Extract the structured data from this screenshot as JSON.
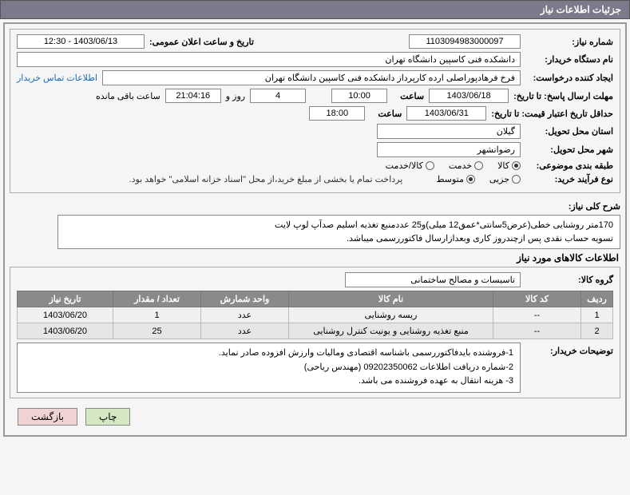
{
  "header": {
    "title": "جزئیات اطلاعات نیاز"
  },
  "fields": {
    "need_no_label": "شماره نیاز:",
    "need_no": "1103094983000097",
    "announce_label": "تاریخ و ساعت اعلان عمومی:",
    "announce_val": "1403/06/13 - 12:30",
    "buyer_label": "نام دستگاه خریدار:",
    "buyer_val": "دانشکده فنی کاسپین دانشگاه تهران",
    "requester_label": "ایجاد کننده درخواست:",
    "requester_val": "فرخ فرهادپوراصلی ارده کارپرداز دانشکده فنی کاسپین دانشگاه تهران",
    "contact_link": "اطلاعات تماس خریدار",
    "deadline_label": "مهلت ارسال پاسخ: تا تاریخ:",
    "deadline_date": "1403/06/18",
    "time_label": "ساعت",
    "deadline_time": "10:00",
    "days_val": "4",
    "days_label": "روز و",
    "countdown": "21:04:16",
    "remaining_label": "ساعت باقی مانده",
    "validity_label": "حداقل تاریخ اعتبار قیمت: تا تاریخ:",
    "validity_date": "1403/06/31",
    "validity_time": "18:00",
    "province_label": "استان محل تحویل:",
    "province_val": "گیلان",
    "city_label": "شهر محل تحویل:",
    "city_val": "رضوانشهر",
    "category_label": "طبقه بندی موضوعی:",
    "process_label": "نوع فرآیند خرید:",
    "payment_note": "پرداخت تمام یا بخشی از مبلغ خرید،از محل \"اسناد خزانه اسلامی\" خواهد بود.",
    "desc_label": "شرح کلی نیاز:",
    "desc_line1": "170متر روشنایی خطی(عرض5سانتی*عمق12 میلی)و25 عددمنبع تغذیه اسلیم صدآپ لوپ لایت",
    "desc_line2": "تسویه حساب نقدی پس ازچندروز کاری وبعدازارسال فاکتوررسمی میباشد.",
    "items_title": "اطلاعات کالاهای مورد نیاز",
    "group_label": "گروه کالا:",
    "group_val": "تاسیسات و مصالح ساختمانی",
    "notes_label": "توضیحات خریدار:",
    "notes_line1": "1-فروشنده بایدفاکتوررسمی باشناسه اقتصادی ومالیات وارزش افزوده صادر نماید.",
    "notes_line2": "2-شماره دریافت اطلاعات 09202350062 (مهندس ریاحی)",
    "notes_line3": "3- هزینه انتقال به عهده فروشنده می باشد."
  },
  "radios": {
    "category": [
      {
        "label": "کالا",
        "checked": true
      },
      {
        "label": "خدمت",
        "checked": false
      },
      {
        "label": "کالا/خدمت",
        "checked": false
      }
    ],
    "process": [
      {
        "label": "جزیی",
        "checked": false
      },
      {
        "label": "متوسط",
        "checked": true
      }
    ]
  },
  "table": {
    "headers": [
      "ردیف",
      "کد کالا",
      "نام کالا",
      "واحد شمارش",
      "تعداد / مقدار",
      "تاریخ نیاز"
    ],
    "rows": [
      [
        "1",
        "--",
        "ریسه روشنایی",
        "عدد",
        "1",
        "1403/06/20"
      ],
      [
        "2",
        "--",
        "منبع تغذیه روشنایی و یونیت کنترل روشنایی",
        "عدد",
        "25",
        "1403/06/20"
      ]
    ],
    "col_widths": [
      "40px",
      "110px",
      "auto",
      "110px",
      "110px",
      "120px"
    ]
  },
  "buttons": {
    "print": "چاپ",
    "back": "بازگشت"
  },
  "colors": {
    "header_bg": "#7a7a8a",
    "th_bg": "#8a8a8a",
    "link": "#1a6bb8",
    "btn_print": "#d4e8c4",
    "btn_back": "#f0d4d4"
  }
}
